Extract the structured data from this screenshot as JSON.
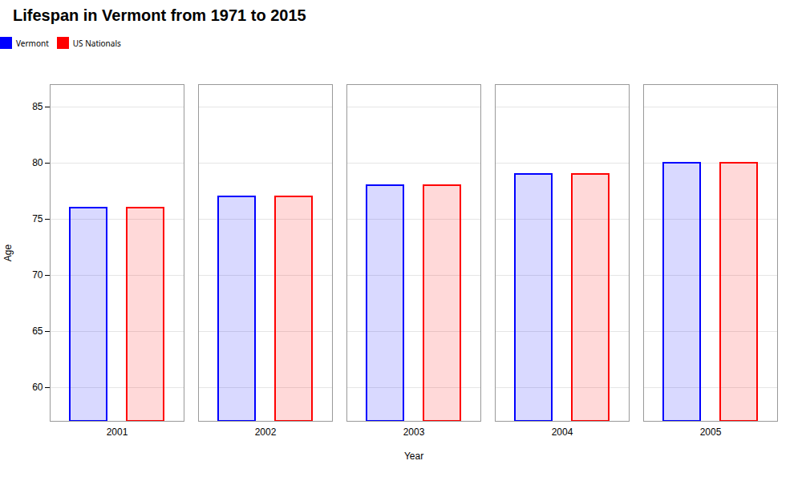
{
  "chart_data": {
    "type": "bar",
    "title": "Lifespan in Vermont from 1971 to 2015",
    "xlabel": "Year",
    "ylabel": "Age",
    "categories": [
      "2001",
      "2002",
      "2003",
      "2004",
      "2005"
    ],
    "series": [
      {
        "name": "Vermont",
        "color": "#0000ff",
        "values": [
          76,
          77,
          78,
          79,
          80
        ]
      },
      {
        "name": "US Nationals",
        "color": "#ff0000",
        "values": [
          76,
          77,
          78,
          79,
          80
        ]
      }
    ],
    "ylim": [
      57,
      87
    ],
    "yticks": [
      60,
      65,
      70,
      75,
      80,
      85
    ],
    "grid": true,
    "legend": "top"
  }
}
